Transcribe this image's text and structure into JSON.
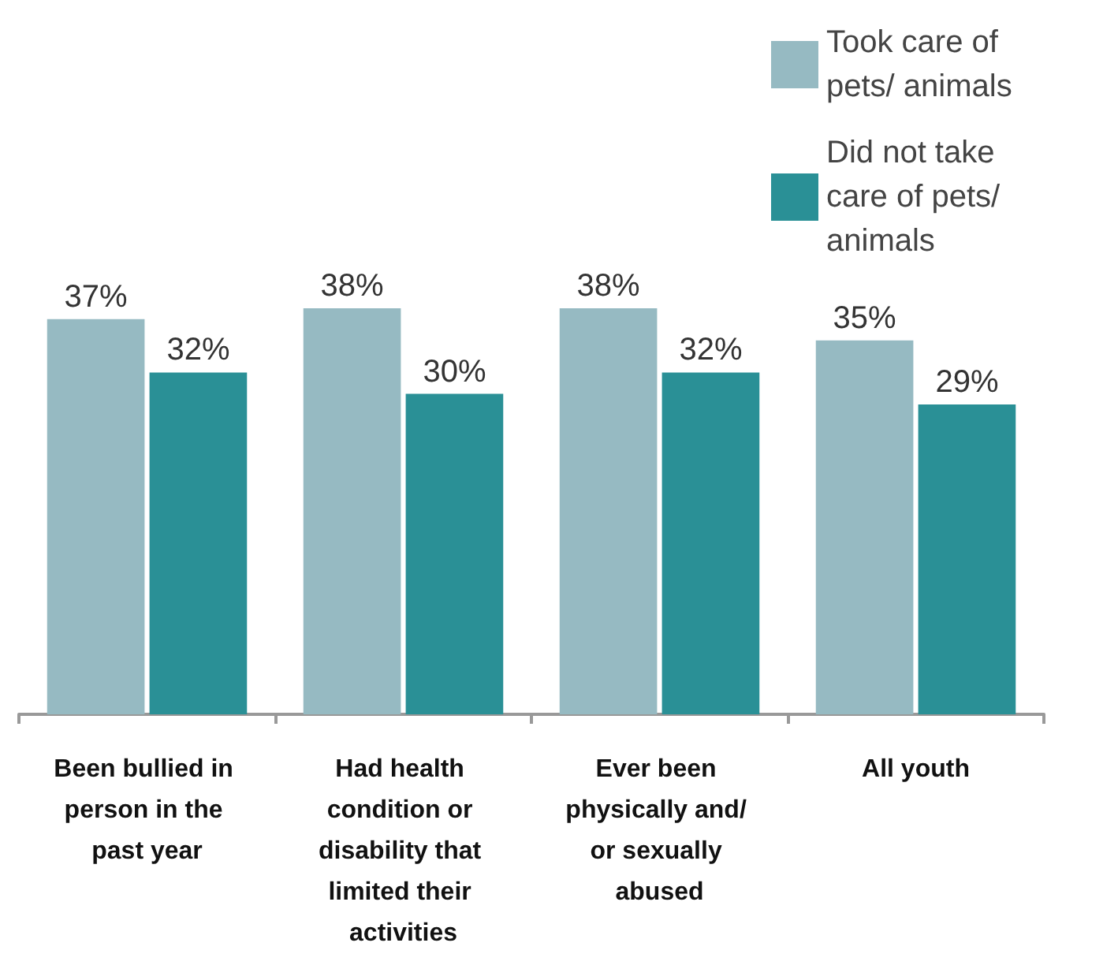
{
  "chart_data": {
    "type": "bar",
    "categories": [
      "Been bullied in person in the past year",
      "Had health condition or disability that limited their activities",
      "Ever been physically and/ or sexually abused",
      "All youth"
    ],
    "series": [
      {
        "name": "Took care of pets/ animals",
        "color": "#96bac2",
        "values": [
          37,
          38,
          38,
          35
        ],
        "value_labels": [
          "37%",
          "38%",
          "38%",
          "35%"
        ]
      },
      {
        "name": "Did not take care of pets/animals",
        "color": "#2a9096",
        "values": [
          32,
          30,
          32,
          29
        ],
        "value_labels": [
          "32%",
          "30%",
          "32%",
          "29%"
        ]
      }
    ],
    "legend": "top right"
  }
}
